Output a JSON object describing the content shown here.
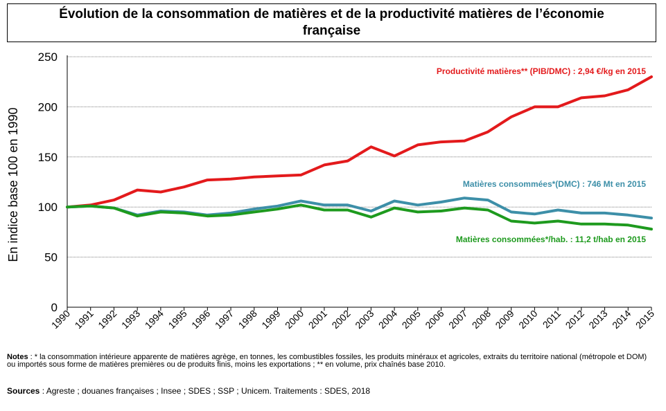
{
  "title": "Évolution de la consommation de matières et de la productivité matières de l’économie française",
  "chart_data": {
    "type": "line",
    "title": "Évolution de la consommation de matières et de la productivité matières de l’économie française",
    "xlabel": "",
    "ylabel": "En indice base 100 en 1990",
    "ylim": [
      0,
      250
    ],
    "yticks": [
      0,
      50,
      100,
      150,
      200,
      250
    ],
    "grid": true,
    "categories": [
      "1990",
      "1991",
      "1992",
      "1993",
      "1994",
      "1995",
      "1996",
      "1997",
      "1998",
      "1999",
      "2000",
      "2001",
      "2002",
      "2003",
      "2004",
      "2005",
      "2006",
      "2007",
      "2008",
      "2009",
      "2010",
      "2011",
      "2012",
      "2013",
      "2014",
      "2015"
    ],
    "series": [
      {
        "name": "Productivité matières** (PIB/DMC) : 2,94 €/kg en 2015",
        "color": "#e31a1c",
        "values": [
          100,
          102,
          107,
          117,
          115,
          120,
          127,
          128,
          130,
          131,
          132,
          142,
          146,
          160,
          151,
          162,
          165,
          166,
          175,
          190,
          200,
          200,
          209,
          211,
          217,
          230
        ]
      },
      {
        "name": "Matières consommées*(DMC) : 746 Mt en 2015",
        "color": "#3d8fa8",
        "values": [
          100,
          101,
          99,
          92,
          96,
          95,
          92,
          94,
          98,
          101,
          106,
          102,
          102,
          96,
          106,
          102,
          105,
          109,
          107,
          95,
          93,
          97,
          94,
          94,
          92,
          89
        ]
      },
      {
        "name": "Matières consommées*/hab. : 11,2 t/hab en 2015",
        "color": "#1e9a1e",
        "values": [
          100,
          101,
          99,
          91,
          95,
          94,
          91,
          92,
          95,
          98,
          102,
          97,
          97,
          90,
          99,
          95,
          96,
          99,
          97,
          86,
          84,
          86,
          83,
          83,
          82,
          78
        ]
      }
    ]
  },
  "notes_label": "Notes",
  "notes_text": " : * la consommation intérieure apparente de matières agrège, en tonnes, les combustibles fossiles, les produits minéraux et agricoles, extraits du territoire national (métropole et DOM) ou importés sous forme de matières premières ou de produits finis, moins les exportations ; ** en volume, prix chaînés base 2010.",
  "sources_label": "Sources",
  "sources_text": " : Agreste ; douanes françaises ; Insee ; SDES ; SSP ; Unicem. Traitements : SDES, 2018"
}
